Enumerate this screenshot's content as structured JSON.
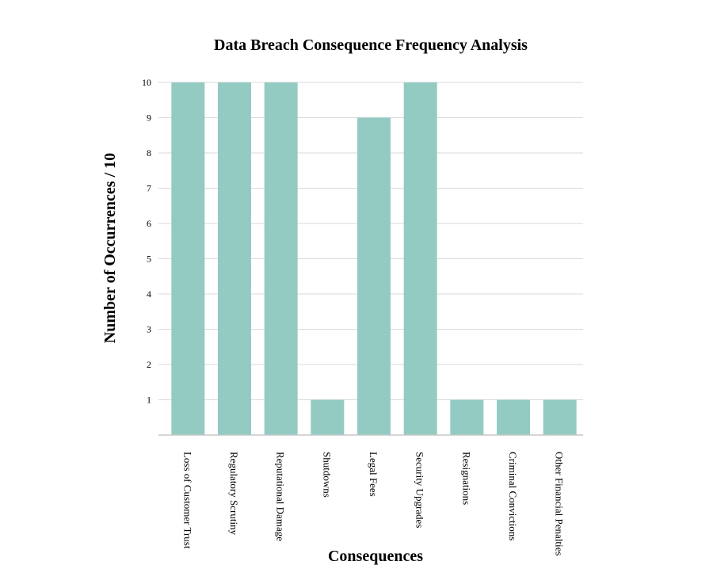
{
  "chart_data": {
    "type": "bar",
    "title": "Data Breach Consequence Frequency Analysis",
    "xlabel": "Consequences",
    "ylabel": "Number of Occurrences / 10",
    "categories": [
      "Loss of Customer Trust",
      "Regulatory Scrutiny",
      "Reputational Damage",
      "Shutdowns",
      "Legal Fees",
      "Security Upgrades",
      "Resignations",
      "Criminal Convictions",
      "Other Financial Penalties"
    ],
    "values": [
      10,
      10,
      10,
      1,
      9,
      10,
      1,
      1,
      1
    ],
    "ylim": [
      0,
      10
    ],
    "yticks": [
      1,
      2,
      3,
      4,
      5,
      6,
      7,
      8,
      9,
      10
    ],
    "grid": true,
    "bar_color": "#93cbc2",
    "grid_color": "#d9d9d9",
    "axis_color": "#c8c8c8"
  }
}
